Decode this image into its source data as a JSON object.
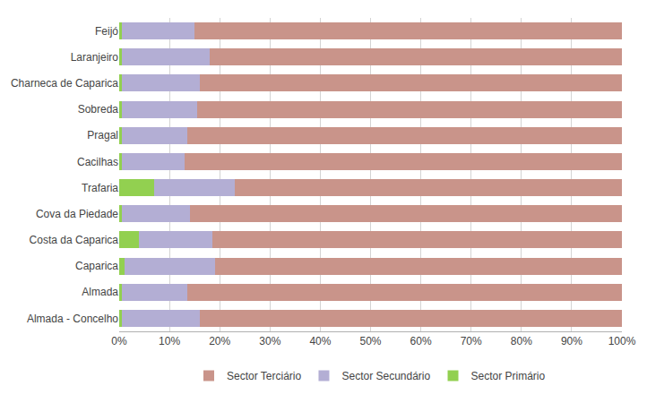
{
  "chart_data": {
    "type": "bar",
    "orientation": "horizontal",
    "stacked": true,
    "categories": [
      "Feijó",
      "Laranjeiro",
      "Charneca de Caparica",
      "Sobreda",
      "Pragal",
      "Cacilhas",
      "Trafaria",
      "Cova da Piedade",
      "Costa da Caparica",
      "Caparica",
      "Almada",
      "Almada - Concelho"
    ],
    "series": [
      {
        "name": "Sector Primário",
        "color": "#92d050",
        "values": [
          0.5,
          0.5,
          0.5,
          0.5,
          0.5,
          0.5,
          7.0,
          0.5,
          4.0,
          1.0,
          0.5,
          0.5
        ]
      },
      {
        "name": "Sector Secundário",
        "color": "#b3aed4",
        "values": [
          14.5,
          17.5,
          15.5,
          15.0,
          13.0,
          12.5,
          16.0,
          13.5,
          14.5,
          18.0,
          13.0,
          15.5
        ]
      },
      {
        "name": "Sector Terciário",
        "color": "#c9948a",
        "values": [
          85.0,
          82.0,
          84.0,
          84.5,
          86.5,
          87.0,
          77.0,
          86.0,
          81.5,
          81.0,
          86.5,
          84.0
        ]
      }
    ],
    "xlim": [
      0,
      100
    ],
    "xticks": [
      {
        "value": 0,
        "label": "0%"
      },
      {
        "value": 10,
        "label": "10%"
      },
      {
        "value": 20,
        "label": "20%"
      },
      {
        "value": 30,
        "label": "30%"
      },
      {
        "value": 40,
        "label": "40%"
      },
      {
        "value": 50,
        "label": "50%"
      },
      {
        "value": 60,
        "label": "60%"
      },
      {
        "value": 70,
        "label": "70%"
      },
      {
        "value": 80,
        "label": "80%"
      },
      {
        "value": 90,
        "label": "90%"
      },
      {
        "value": 100,
        "label": "100%"
      }
    ],
    "grid": true,
    "legend": "bottom"
  }
}
